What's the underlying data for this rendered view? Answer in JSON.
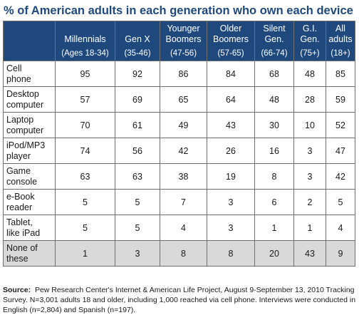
{
  "title": "% of American adults in each generation who own each device",
  "chart_data": {
    "type": "table",
    "columns": [
      {
        "name": "Millennials",
        "age": "(Ages 18-34)"
      },
      {
        "name": "Gen X",
        "age": "(35-46)"
      },
      {
        "name": "Younger Boomers",
        "age": "(47-56)"
      },
      {
        "name": "Older Boomers",
        "age": "(57-65)"
      },
      {
        "name": "Silent Gen.",
        "age": "(66-74)"
      },
      {
        "name": "G.I. Gen.",
        "age": "(75+)"
      },
      {
        "name": "All adults",
        "age": "(18+)"
      }
    ],
    "rows": [
      {
        "label": "Cell phone",
        "values": [
          95,
          92,
          86,
          84,
          68,
          48,
          85
        ]
      },
      {
        "label": "Desktop computer",
        "values": [
          57,
          69,
          65,
          64,
          48,
          28,
          59
        ]
      },
      {
        "label": "Laptop computer",
        "values": [
          70,
          61,
          49,
          43,
          30,
          10,
          52
        ]
      },
      {
        "label": "iPod/MP3 player",
        "values": [
          74,
          56,
          42,
          26,
          16,
          3,
          47
        ]
      },
      {
        "label": "Game console",
        "values": [
          63,
          63,
          38,
          19,
          8,
          3,
          42
        ]
      },
      {
        "label": "e-Book reader",
        "values": [
          5,
          5,
          7,
          3,
          6,
          2,
          5
        ]
      },
      {
        "label": "Tablet, like iPad",
        "values": [
          5,
          5,
          4,
          3,
          1,
          1,
          4
        ]
      },
      {
        "label": "None of these",
        "values": [
          1,
          3,
          8,
          8,
          20,
          43,
          9
        ]
      }
    ]
  },
  "source": {
    "label": "Source:",
    "text": "Pew Research Center's Internet & American Life Project, August 9-September 13, 2010 Tracking Survey. N=3,001 adults 18 and older, including 1,000 reached via cell phone. Interviews were conducted in English (n=2,804) and Spanish (n=197)."
  },
  "colors": {
    "header_bg": "#1f497d",
    "title_color": "#1f497d",
    "highlight_row_bg": "#d9d9d9",
    "border": "#6f6f6f"
  }
}
